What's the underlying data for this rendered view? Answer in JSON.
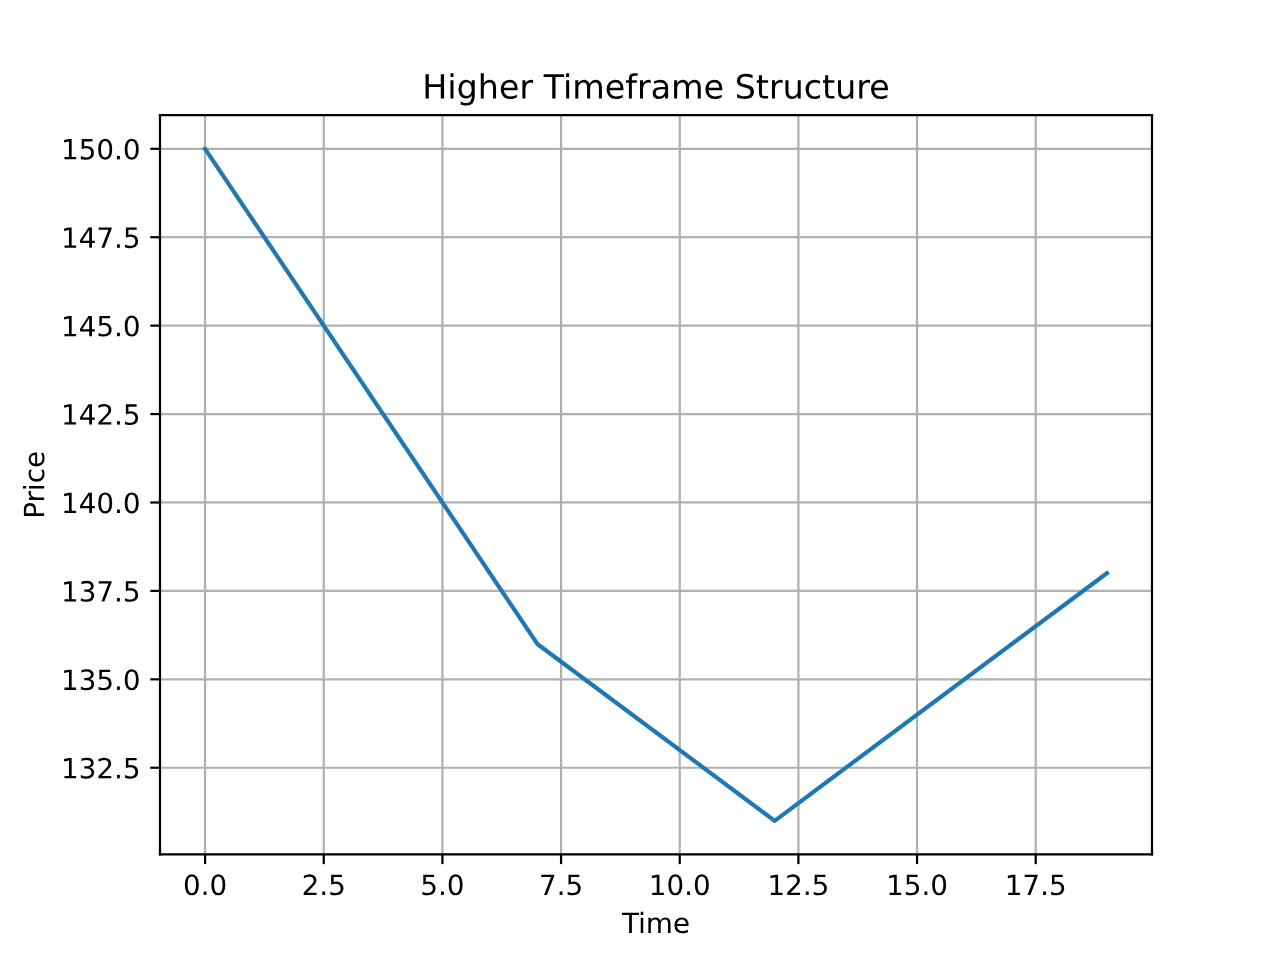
{
  "chart_data": {
    "type": "line",
    "title": "Higher Timeframe Structure",
    "xlabel": "Time",
    "ylabel": "Price",
    "x": [
      0,
      7,
      12,
      19
    ],
    "series": [
      {
        "color": "#1f77b4",
        "values": [
          150,
          136,
          131,
          138
        ]
      }
    ],
    "xlim": [
      -0.95,
      19.95
    ],
    "ylim": [
      130.05,
      150.95
    ],
    "xticks": [
      {
        "value": 0,
        "label": "0.0"
      },
      {
        "value": 2.5,
        "label": "2.5"
      },
      {
        "value": 5,
        "label": "5.0"
      },
      {
        "value": 7.5,
        "label": "7.5"
      },
      {
        "value": 10,
        "label": "10.0"
      },
      {
        "value": 12.5,
        "label": "12.5"
      },
      {
        "value": 15,
        "label": "15.0"
      },
      {
        "value": 17.5,
        "label": "17.5"
      }
    ],
    "yticks": [
      {
        "value": 132.5,
        "label": "132.5"
      },
      {
        "value": 135,
        "label": "135.0"
      },
      {
        "value": 137.5,
        "label": "137.5"
      },
      {
        "value": 140,
        "label": "140.0"
      },
      {
        "value": 142.5,
        "label": "142.5"
      },
      {
        "value": 145,
        "label": "145.0"
      },
      {
        "value": 147.5,
        "label": "147.5"
      },
      {
        "value": 150,
        "label": "150.0"
      }
    ],
    "grid": true,
    "marker": "none",
    "line_style": "solid"
  }
}
